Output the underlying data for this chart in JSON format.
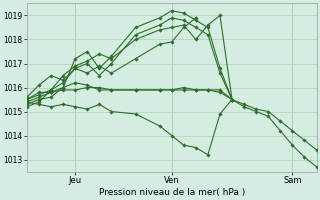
{
  "bg_color": "#d4ede0",
  "grid_color": "#b0ccbb",
  "line_color": "#2d6e2d",
  "xlabel": "Pression niveau de la mer( hPa )",
  "ylim": [
    1012.5,
    1019.5
  ],
  "yticks": [
    1013,
    1014,
    1015,
    1016,
    1017,
    1018,
    1019
  ],
  "xlim": [
    0,
    72
  ],
  "day_ticks": [
    12,
    36,
    66
  ],
  "day_labels": [
    "Jeu",
    "Ven",
    "Sam"
  ],
  "series": [
    {
      "x": [
        0,
        3,
        6,
        9,
        12,
        15,
        18,
        21,
        27,
        33,
        36,
        39,
        42,
        45,
        48,
        51,
        54,
        57,
        60,
        63,
        66,
        69,
        72
      ],
      "y": [
        1015.3,
        1015.5,
        1015.6,
        1016.0,
        1017.2,
        1017.5,
        1016.8,
        1017.3,
        1018.5,
        1018.9,
        1019.2,
        1019.1,
        1018.8,
        1018.5,
        1016.8,
        1015.5,
        1015.2,
        1015.0,
        1014.8,
        1014.2,
        1013.6,
        1013.1,
        1012.7
      ]
    },
    {
      "x": [
        0,
        3,
        6,
        9,
        12,
        15,
        18,
        21,
        27,
        33,
        36,
        39,
        42,
        45,
        48,
        51,
        54,
        57,
        60,
        63,
        66,
        69,
        72
      ],
      "y": [
        1015.2,
        1015.4,
        1015.9,
        1016.2,
        1016.8,
        1017.0,
        1016.5,
        1017.0,
        1018.2,
        1018.6,
        1018.9,
        1018.8,
        1018.5,
        1018.2,
        1016.6,
        1015.5,
        1015.3,
        1015.1,
        1015.0,
        1014.6,
        1014.2,
        1013.8,
        1013.4
      ]
    },
    {
      "x": [
        0,
        3,
        6,
        9,
        12,
        15,
        18,
        21,
        27,
        33,
        36,
        39,
        42,
        45,
        48,
        51
      ],
      "y": [
        1015.5,
        1015.7,
        1015.9,
        1016.5,
        1016.9,
        1017.1,
        1017.4,
        1017.2,
        1018.0,
        1018.4,
        1018.5,
        1018.6,
        1018.0,
        1018.6,
        1019.0,
        1015.5
      ]
    },
    {
      "x": [
        0,
        3,
        6,
        9,
        12,
        15,
        18,
        21,
        27,
        33,
        36,
        39,
        42
      ],
      "y": [
        1015.6,
        1016.1,
        1016.5,
        1016.3,
        1016.8,
        1016.6,
        1016.9,
        1016.6,
        1017.2,
        1017.8,
        1017.9,
        1018.5,
        1018.9
      ]
    },
    {
      "x": [
        0,
        3,
        6,
        9,
        12,
        15,
        18,
        21,
        27,
        33,
        36,
        39,
        42,
        45,
        48,
        51
      ],
      "y": [
        1015.5,
        1015.8,
        1015.8,
        1016.0,
        1016.2,
        1016.1,
        1015.9,
        1015.9,
        1015.9,
        1015.9,
        1015.9,
        1016.0,
        1015.9,
        1015.9,
        1015.9,
        1015.5
      ]
    },
    {
      "x": [
        0,
        3,
        6,
        9,
        12,
        15,
        18,
        21,
        27,
        33,
        36,
        39,
        42,
        45,
        48,
        51
      ],
      "y": [
        1015.4,
        1015.6,
        1015.8,
        1015.9,
        1015.9,
        1016.0,
        1016.0,
        1015.9,
        1015.9,
        1015.9,
        1015.9,
        1015.9,
        1015.9,
        1015.9,
        1015.8,
        1015.5
      ]
    },
    {
      "x": [
        0,
        3,
        6,
        9,
        12,
        15,
        18,
        21,
        27,
        33,
        36,
        39,
        42,
        45,
        48,
        51
      ],
      "y": [
        1015.4,
        1015.3,
        1015.2,
        1015.3,
        1015.2,
        1015.1,
        1015.3,
        1015.0,
        1014.9,
        1014.4,
        1014.0,
        1013.6,
        1013.5,
        1013.2,
        1014.9,
        1015.5
      ]
    }
  ]
}
